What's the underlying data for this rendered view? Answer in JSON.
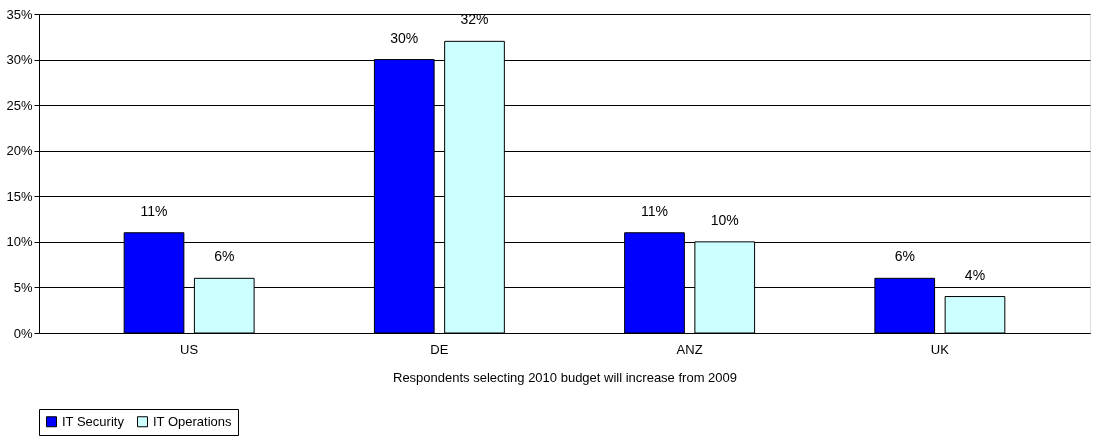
{
  "chart_data": {
    "type": "bar",
    "xlabel": "Respondents selecting 2010 budget will increase from 2009",
    "categories": [
      "US",
      "DE",
      "ANZ",
      "UK"
    ],
    "series": [
      {
        "name": "IT Security",
        "color": "#0000ff",
        "values": [
          11,
          30,
          11,
          6
        ],
        "value_labels": [
          "11%",
          "30%",
          "11%",
          "6%"
        ]
      },
      {
        "name": "IT Operations",
        "color": "#ccffff",
        "values": [
          6,
          32,
          10,
          4
        ],
        "value_labels": [
          "6%",
          "32%",
          "10%",
          "4%"
        ]
      }
    ],
    "ylim": [
      0,
      35
    ],
    "yticks": [
      {
        "value": 0,
        "label": "0%"
      },
      {
        "value": 5,
        "label": "5%"
      },
      {
        "value": 10,
        "label": "10%"
      },
      {
        "value": 15,
        "label": "15%"
      },
      {
        "value": 20,
        "label": "20%"
      },
      {
        "value": 25,
        "label": "25%"
      },
      {
        "value": 30,
        "label": "30%"
      },
      {
        "value": 35,
        "label": "35%"
      }
    ],
    "grid": "y",
    "legend": "bottom"
  }
}
